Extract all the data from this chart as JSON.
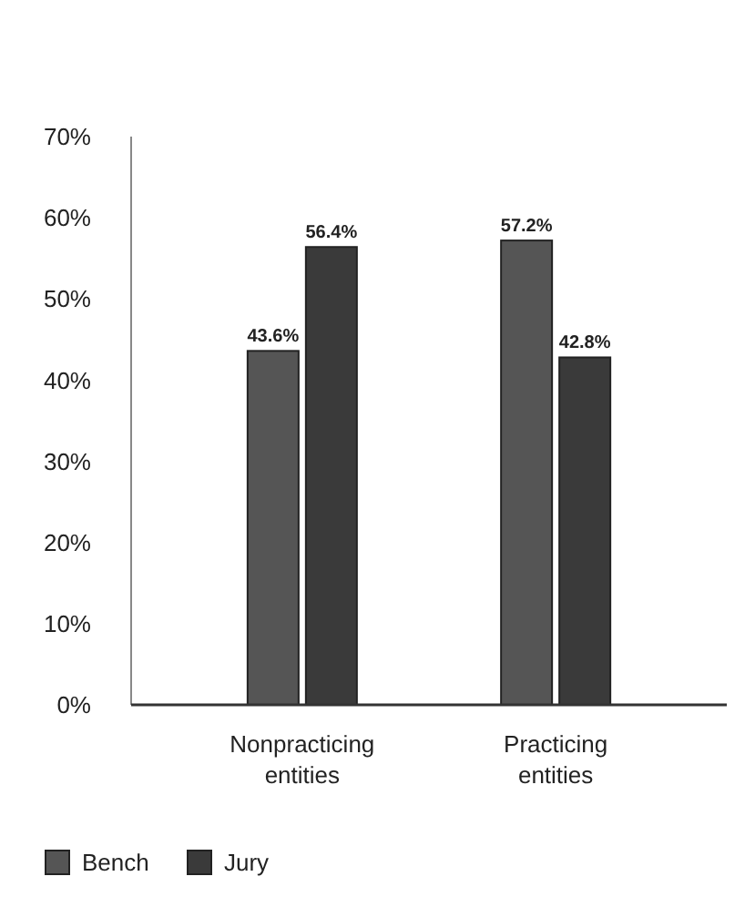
{
  "chart_data": {
    "type": "bar",
    "categories": [
      "Nonpracticing entities",
      "Practicing entities"
    ],
    "series": [
      {
        "name": "Bench",
        "color": "#555555",
        "values": [
          43.6,
          57.2
        ],
        "value_labels": [
          "43.6%",
          "57.2%"
        ]
      },
      {
        "name": "Jury",
        "color": "#3a3a3a",
        "values": [
          56.4,
          42.8
        ],
        "value_labels": [
          "56.4%",
          "42.8%"
        ]
      }
    ],
    "ylim": [
      0,
      70
    ],
    "yticks": [
      {
        "value": 0,
        "label": "0%"
      },
      {
        "value": 10,
        "label": "10%"
      },
      {
        "value": 20,
        "label": "20%"
      },
      {
        "value": 30,
        "label": "30%"
      },
      {
        "value": 40,
        "label": "40%"
      },
      {
        "value": 50,
        "label": "50%"
      },
      {
        "value": 60,
        "label": "60%"
      },
      {
        "value": 70,
        "label": "70%"
      }
    ],
    "grid": false,
    "legend": "bottom left"
  }
}
